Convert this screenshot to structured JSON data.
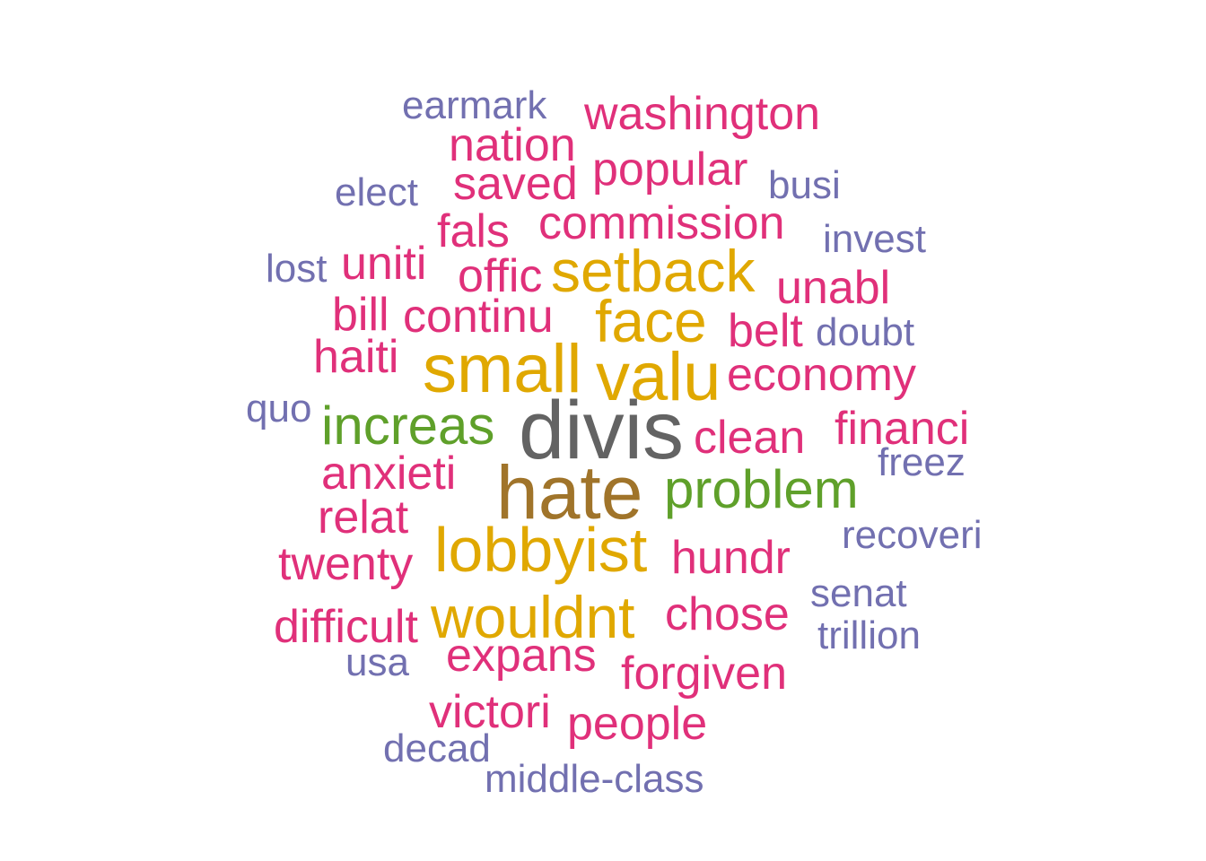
{
  "colors": {
    "gray": "#636363",
    "brown": "#a0742a",
    "green": "#5fa02a",
    "gold": "#e0a800",
    "magenta": "#e0307a",
    "purple": "#7270b0"
  },
  "words": [
    {
      "id": "earmark",
      "text": "earmark",
      "color": "purple"
    },
    {
      "id": "washington",
      "text": "washington",
      "color": "magenta"
    },
    {
      "id": "nation",
      "text": "nation",
      "color": "magenta"
    },
    {
      "id": "popular",
      "text": "popular",
      "color": "magenta"
    },
    {
      "id": "saved",
      "text": "saved",
      "color": "magenta"
    },
    {
      "id": "elect",
      "text": "elect",
      "color": "purple"
    },
    {
      "id": "busi",
      "text": "busi",
      "color": "purple"
    },
    {
      "id": "commission",
      "text": "commission",
      "color": "magenta"
    },
    {
      "id": "fals",
      "text": "fals",
      "color": "magenta"
    },
    {
      "id": "invest",
      "text": "invest",
      "color": "purple"
    },
    {
      "id": "lost",
      "text": "lost",
      "color": "purple"
    },
    {
      "id": "uniti",
      "text": "uniti",
      "color": "magenta"
    },
    {
      "id": "offic",
      "text": "offic",
      "color": "magenta"
    },
    {
      "id": "setback",
      "text": "setback",
      "color": "gold"
    },
    {
      "id": "unabl",
      "text": "unabl",
      "color": "magenta"
    },
    {
      "id": "bill",
      "text": "bill",
      "color": "magenta"
    },
    {
      "id": "continu",
      "text": "continu",
      "color": "magenta"
    },
    {
      "id": "face",
      "text": "face",
      "color": "gold"
    },
    {
      "id": "belt",
      "text": "belt",
      "color": "magenta"
    },
    {
      "id": "doubt",
      "text": "doubt",
      "color": "purple"
    },
    {
      "id": "haiti",
      "text": "haiti",
      "color": "magenta"
    },
    {
      "id": "small",
      "text": "small",
      "color": "gold"
    },
    {
      "id": "valu",
      "text": "valu",
      "color": "gold"
    },
    {
      "id": "economy",
      "text": "economy",
      "color": "magenta"
    },
    {
      "id": "quo",
      "text": "quo",
      "color": "purple"
    },
    {
      "id": "increas",
      "text": "increas",
      "color": "green"
    },
    {
      "id": "divis",
      "text": "divis",
      "color": "gray"
    },
    {
      "id": "financi",
      "text": "financi",
      "color": "magenta"
    },
    {
      "id": "clean",
      "text": "clean",
      "color": "magenta"
    },
    {
      "id": "freez",
      "text": "freez",
      "color": "purple"
    },
    {
      "id": "anxieti",
      "text": "anxieti",
      "color": "magenta"
    },
    {
      "id": "hate",
      "text": "hate",
      "color": "brown"
    },
    {
      "id": "problem",
      "text": "problem",
      "color": "green"
    },
    {
      "id": "relat",
      "text": "relat",
      "color": "magenta"
    },
    {
      "id": "recoveri",
      "text": "recoveri",
      "color": "purple"
    },
    {
      "id": "lobbyist",
      "text": "lobbyist",
      "color": "gold"
    },
    {
      "id": "hundr",
      "text": "hundr",
      "color": "magenta"
    },
    {
      "id": "twenty",
      "text": "twenty",
      "color": "magenta"
    },
    {
      "id": "senat",
      "text": "senat",
      "color": "purple"
    },
    {
      "id": "wouldnt",
      "text": "wouldnt",
      "color": "gold"
    },
    {
      "id": "chose",
      "text": "chose",
      "color": "magenta"
    },
    {
      "id": "difficult",
      "text": "difficult",
      "color": "magenta"
    },
    {
      "id": "trillion",
      "text": "trillion",
      "color": "purple"
    },
    {
      "id": "expans",
      "text": "expans",
      "color": "magenta"
    },
    {
      "id": "usa",
      "text": "usa",
      "color": "purple"
    },
    {
      "id": "forgiven",
      "text": "forgiven",
      "color": "magenta"
    },
    {
      "id": "victori",
      "text": "victori",
      "color": "magenta"
    },
    {
      "id": "people",
      "text": "people",
      "color": "magenta"
    },
    {
      "id": "decad",
      "text": "decad",
      "color": "purple"
    },
    {
      "id": "middle-class",
      "text": "middle-class",
      "color": "purple"
    }
  ]
}
